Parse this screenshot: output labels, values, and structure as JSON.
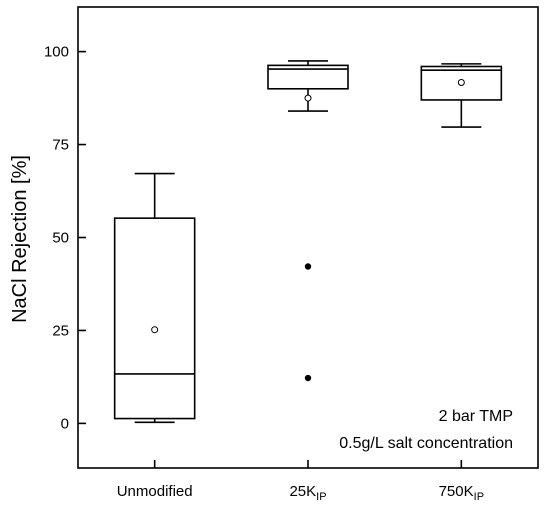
{
  "chart_data": {
    "type": "box",
    "ylabel": "NaCl Rejection [%]",
    "ylim": [
      -12,
      112
    ],
    "yticks": [
      0,
      25,
      50,
      75,
      100
    ],
    "categories": [
      {
        "label": "Unmodified",
        "sub": ""
      },
      {
        "label": "25K",
        "sub": "IP"
      },
      {
        "label": "750K",
        "sub": "IP"
      }
    ],
    "boxes": [
      {
        "whisker_low": 0.3,
        "q1": 1.3,
        "median": 13.3,
        "q3": 55.2,
        "whisker_high": 67.2,
        "mean": 25.2,
        "outliers": []
      },
      {
        "whisker_low": 84.0,
        "q1": 90.0,
        "median": 95.3,
        "q3": 96.3,
        "whisker_high": 97.5,
        "mean": 87.5,
        "outliers": [
          42.2,
          12.2
        ]
      },
      {
        "whisker_low": 79.7,
        "q1": 87.0,
        "median": 95.0,
        "q3": 96.0,
        "whisker_high": 96.7,
        "mean": 91.7,
        "outliers": []
      }
    ],
    "annotations": [
      "2 bar TMP",
      "0.5g/L salt concentration"
    ],
    "grid": false
  }
}
